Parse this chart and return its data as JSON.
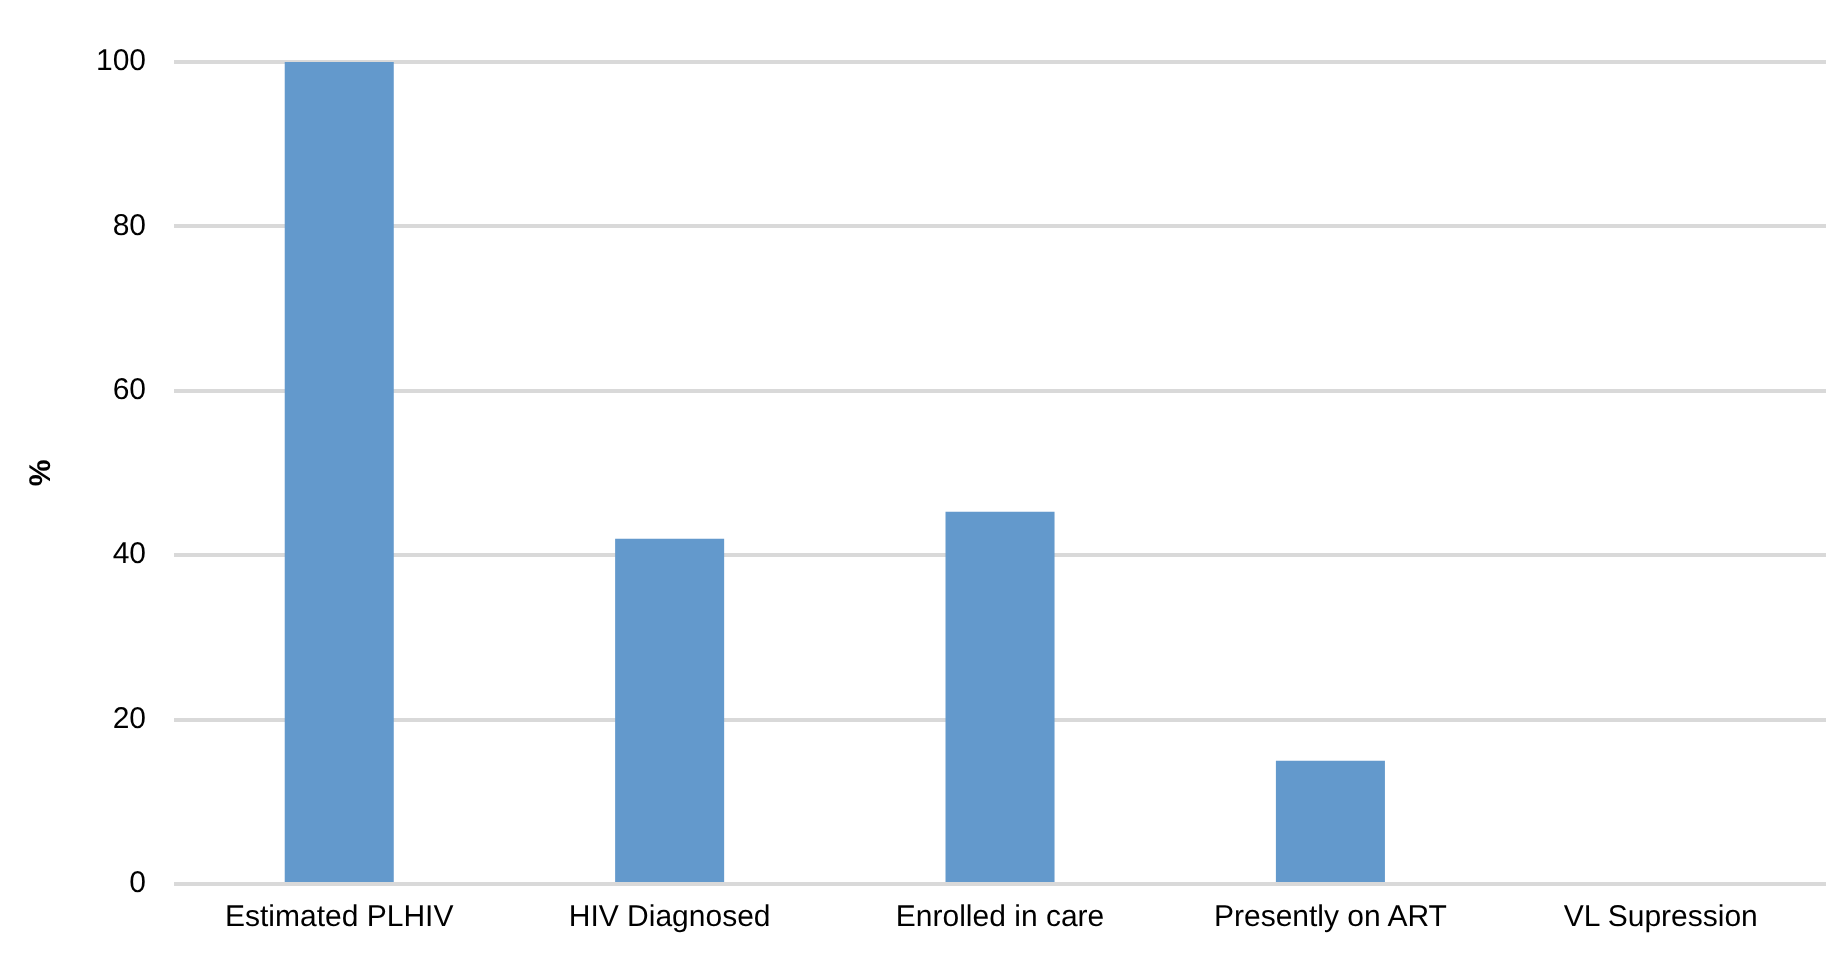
{
  "chart_data": {
    "type": "bar",
    "ylabel": "%",
    "categories": [
      "Estimated PLHIV",
      "HIV Diagnosed",
      "Enrolled in care",
      "Presently on ART",
      "VL Supression"
    ],
    "values": [
      100,
      42,
      45.3,
      15,
      null
    ],
    "color": "#6399cc",
    "ylim": [
      0,
      100
    ],
    "yticks": [
      0,
      20,
      40,
      60,
      80,
      100
    ],
    "grid": "y"
  }
}
